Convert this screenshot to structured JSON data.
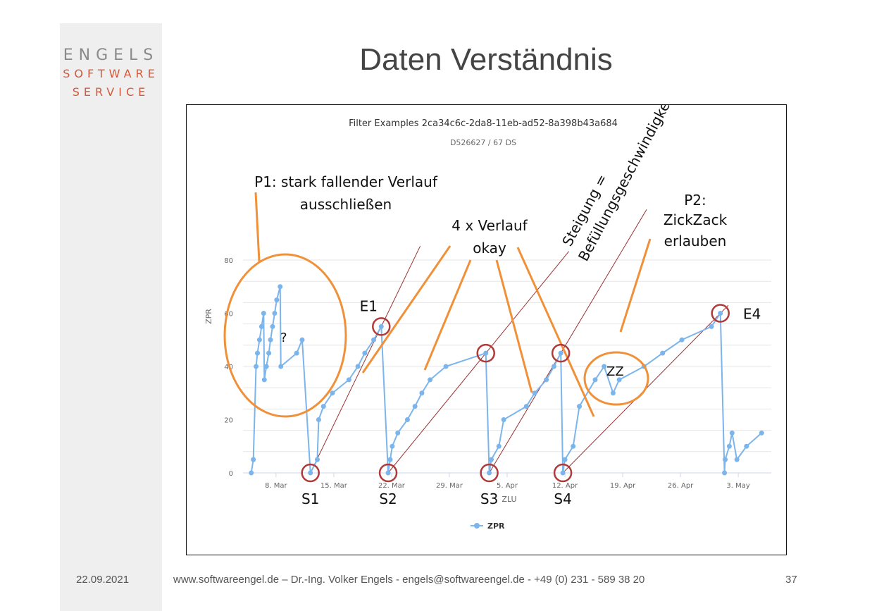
{
  "logo": {
    "line1": "ENGELS",
    "line2": "SOFTWARE",
    "line3": "SERVICE"
  },
  "slide": {
    "title": "Daten Verständnis"
  },
  "footer": {
    "date": "22.09.2021",
    "info": "www.softwareengel.de – Dr.-Ing. Volker Engels - engels@softwareengel.de - +49 (0) 231 - 589 38 20",
    "page": "37"
  },
  "colors": {
    "series": "#7cb5ec",
    "annotation": "#f0913a",
    "circle": "#b03a3a",
    "trend": "#9b3030",
    "title": "#444444",
    "logo_accent": "#d4583a"
  },
  "chart_data": {
    "type": "line",
    "title": "Filter Examples 2ca34c6c-2da8-11eb-ad52-8a398b43a684",
    "subtitle": "D526627 / 67 DS",
    "xlabel": "ZLU",
    "ylabel": "ZPR",
    "ylim": [
      0,
      80
    ],
    "yticks": [
      0,
      20,
      40,
      60,
      80
    ],
    "xlim": [
      "2021-03-04",
      "2021-05-07"
    ],
    "xticks": [
      {
        "date": "2021-03-08",
        "label": "8. Mar"
      },
      {
        "date": "2021-03-15",
        "label": "15. Mar"
      },
      {
        "date": "2021-03-22",
        "label": "22. Mar"
      },
      {
        "date": "2021-03-29",
        "label": "29. Mar"
      },
      {
        "date": "2021-04-05",
        "label": "5. Apr"
      },
      {
        "date": "2021-04-12",
        "label": "12. Apr"
      },
      {
        "date": "2021-04-19",
        "label": "19. Apr"
      },
      {
        "date": "2021-04-26",
        "label": "26. Apr"
      },
      {
        "date": "2021-05-03",
        "label": "3. May"
      }
    ],
    "grid": true,
    "legend": "bottom",
    "series": [
      {
        "name": "ZPR",
        "points": [
          [
            "2021-03-05 00:00",
            0
          ],
          [
            "2021-03-05 06:00",
            5
          ],
          [
            "2021-03-05 14:00",
            40
          ],
          [
            "2021-03-05 18:00",
            45
          ],
          [
            "2021-03-06 00:00",
            50
          ],
          [
            "2021-03-06 06:00",
            55
          ],
          [
            "2021-03-06 12:00",
            60
          ],
          [
            "2021-03-06 14:00",
            35
          ],
          [
            "2021-03-06 20:00",
            40
          ],
          [
            "2021-03-07 03:00",
            45
          ],
          [
            "2021-03-07 08:00",
            50
          ],
          [
            "2021-03-07 14:00",
            55
          ],
          [
            "2021-03-07 20:00",
            60
          ],
          [
            "2021-03-08 02:00",
            65
          ],
          [
            "2021-03-08 12:00",
            70
          ],
          [
            "2021-03-08 14:00",
            40
          ],
          [
            "2021-03-10 12:00",
            45
          ],
          [
            "2021-03-11 04:00",
            50
          ],
          [
            "2021-03-12 04:00",
            0
          ],
          [
            "2021-03-13 00:00",
            5
          ],
          [
            "2021-03-13 04:00",
            20
          ],
          [
            "2021-03-13 18:00",
            25
          ],
          [
            "2021-03-14 20:00",
            30
          ],
          [
            "2021-03-16 20:00",
            35
          ],
          [
            "2021-03-17 22:00",
            40
          ],
          [
            "2021-03-18 18:00",
            45
          ],
          [
            "2021-03-19 20:00",
            50
          ],
          [
            "2021-03-20 18:00",
            55
          ],
          [
            "2021-03-21 14:00",
            0
          ],
          [
            "2021-03-21 20:00",
            5
          ],
          [
            "2021-03-22 02:00",
            10
          ],
          [
            "2021-03-22 18:00",
            15
          ],
          [
            "2021-03-23 22:00",
            20
          ],
          [
            "2021-03-24 20:00",
            25
          ],
          [
            "2021-03-25 16:00",
            30
          ],
          [
            "2021-03-26 16:00",
            35
          ],
          [
            "2021-03-28 14:00",
            40
          ],
          [
            "2021-04-02 10:00",
            45
          ],
          [
            "2021-04-02 20:00",
            0
          ],
          [
            "2021-04-03 02:00",
            5
          ],
          [
            "2021-04-04 00:00",
            10
          ],
          [
            "2021-04-04 14:00",
            20
          ],
          [
            "2021-04-07 08:00",
            25
          ],
          [
            "2021-04-08 08:00",
            30
          ],
          [
            "2021-04-09 18:00",
            35
          ],
          [
            "2021-04-10 16:00",
            40
          ],
          [
            "2021-04-11 12:00",
            45
          ],
          [
            "2021-04-11 18:00",
            0
          ],
          [
            "2021-04-12 00:00",
            5
          ],
          [
            "2021-04-13 00:00",
            10
          ],
          [
            "2021-04-13 18:00",
            25
          ],
          [
            "2021-04-15 16:00",
            35
          ],
          [
            "2021-04-16 18:00",
            40
          ],
          [
            "2021-04-17 20:00",
            30
          ],
          [
            "2021-04-18 14:00",
            35
          ],
          [
            "2021-04-21 14:00",
            40
          ],
          [
            "2021-04-23 20:00",
            45
          ],
          [
            "2021-04-26 04:00",
            50
          ],
          [
            "2021-04-29 18:00",
            55
          ],
          [
            "2021-04-30 20:00",
            60
          ],
          [
            "2021-05-01 08:00",
            0
          ],
          [
            "2021-05-01 10:00",
            5
          ],
          [
            "2021-05-01 22:00",
            10
          ],
          [
            "2021-05-02 06:00",
            15
          ],
          [
            "2021-05-02 20:00",
            5
          ],
          [
            "2021-05-04 00:00",
            10
          ],
          [
            "2021-05-05 20:00",
            15
          ]
        ]
      }
    ],
    "annotations": {
      "p1": {
        "line1": "P1: stark fallender Verlauf",
        "line2": "ausschließen"
      },
      "verlauf": {
        "line1": "4 x Verlauf",
        "line2": "okay"
      },
      "steigung": {
        "line1": "Steigung =",
        "line2": "Befüllungsgeschwindigkeit"
      },
      "p2": {
        "line1": "P2:",
        "line2": "ZickZack",
        "line3": "erlauben"
      },
      "question": "?",
      "zz": "ZZ",
      "starts": [
        {
          "label": "S1",
          "date": "2021-03-12 04:00",
          "value": 0
        },
        {
          "label": "S2",
          "date": "2021-03-21 14:00",
          "value": 0
        },
        {
          "label": "S3",
          "date": "2021-04-02 20:00",
          "value": 0
        },
        {
          "label": "S4",
          "date": "2021-04-11 18:00",
          "value": 0
        }
      ],
      "ends": [
        {
          "label": "E1",
          "date": "2021-03-20 18:00",
          "value": 55
        },
        {
          "label": "",
          "date": "2021-04-02 10:00",
          "value": 45
        },
        {
          "label": "",
          "date": "2021-04-11 12:00",
          "value": 45
        },
        {
          "label": "E4",
          "date": "2021-04-30 20:00",
          "value": 60
        }
      ]
    }
  }
}
